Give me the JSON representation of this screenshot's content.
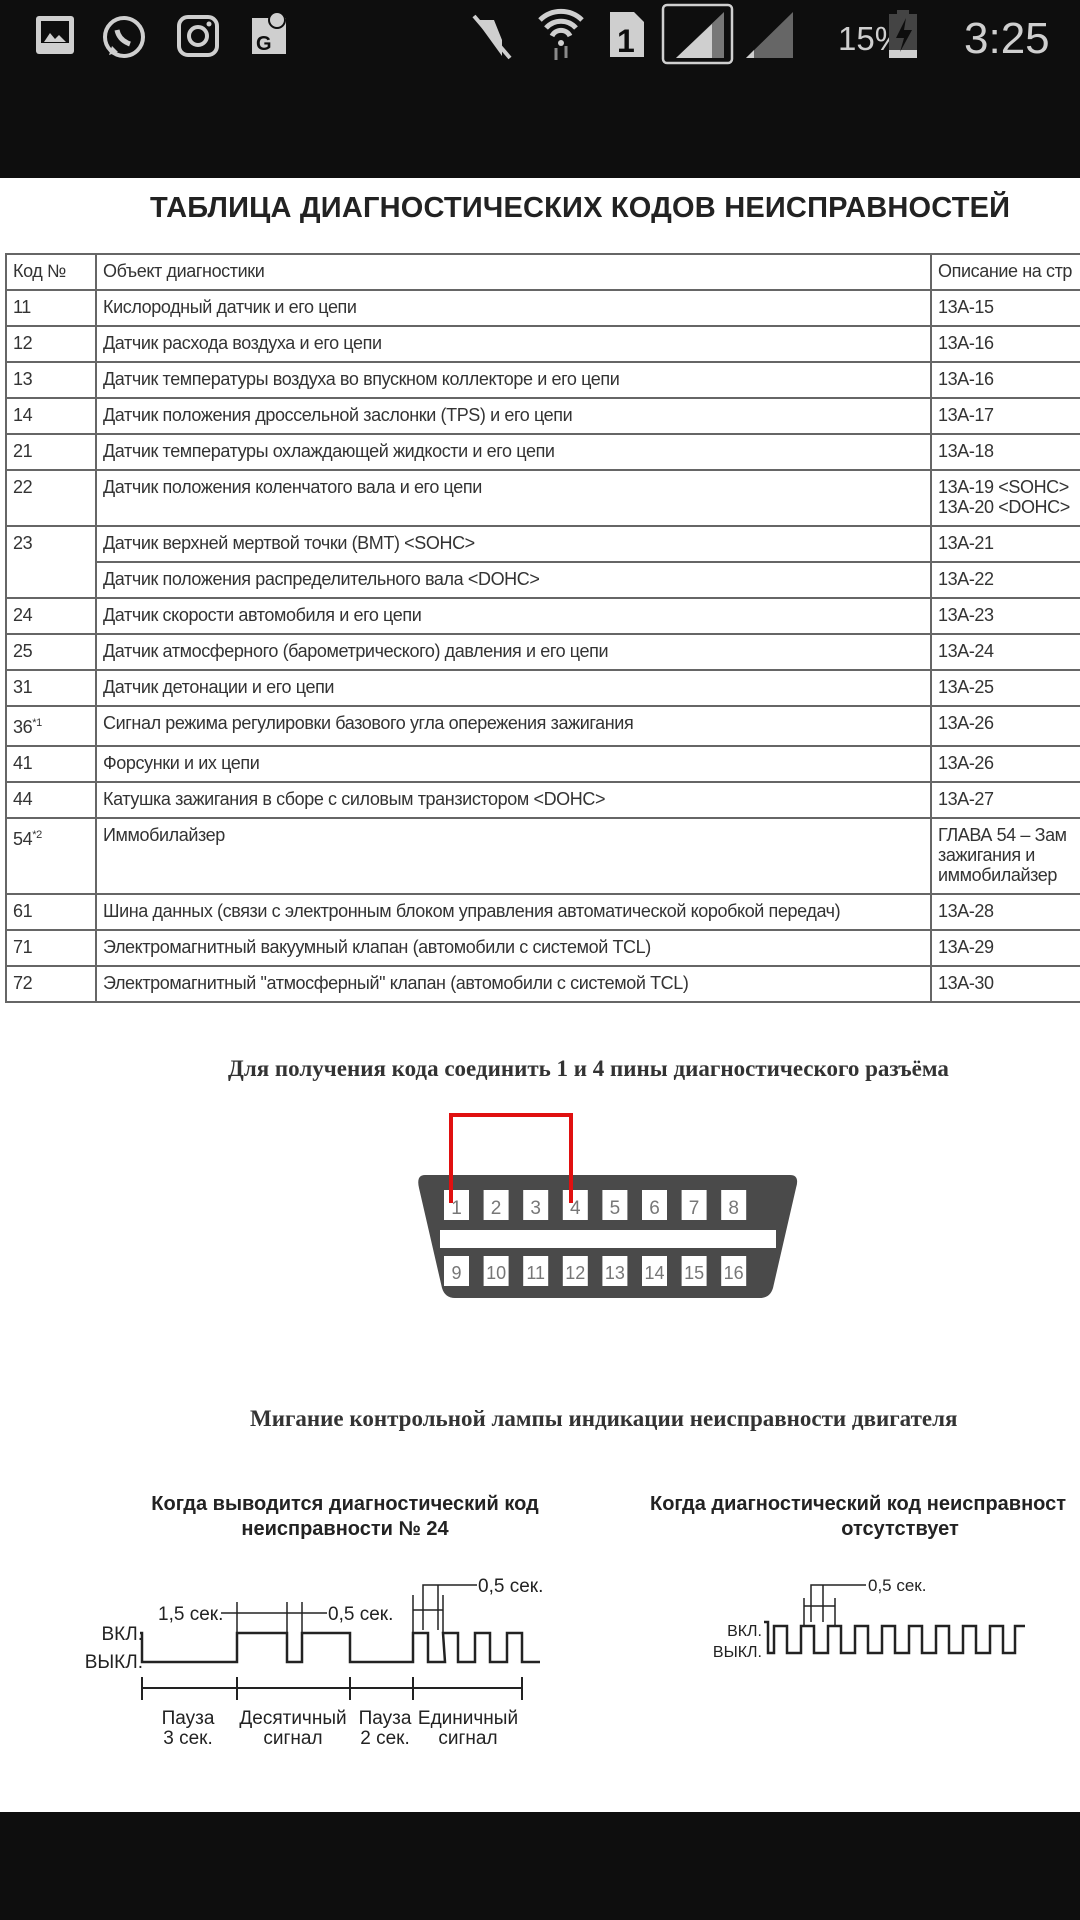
{
  "status_bar": {
    "left_icons": [
      "gallery-icon",
      "whatsapp-icon",
      "instagram-icon",
      "google-maps-icon"
    ],
    "right_icons": [
      "mute-icon",
      "wifi-icon",
      "sim1-icon",
      "signal-icon",
      "signal-2-icon",
      "battery-charging-icon"
    ],
    "battery_percent": "15%",
    "time": "3:25"
  },
  "document": {
    "title": "ТАБЛИЦА ДИАГНОСТИЧЕСКИХ КОДОВ НЕИСПРАВНОСТЕЙ",
    "table": {
      "headers": [
        "Код №",
        "Объект диагностики",
        "Описание на стр"
      ],
      "rows": [
        {
          "code": "11",
          "sup": "",
          "items": [
            {
              "object": "Кислородный датчик и его цепи",
              "page": [
                "13A-15"
              ]
            }
          ]
        },
        {
          "code": "12",
          "sup": "",
          "items": [
            {
              "object": "Датчик расхода воздуха и его цепи",
              "page": [
                "13A-16"
              ]
            }
          ]
        },
        {
          "code": "13",
          "sup": "",
          "items": [
            {
              "object": "Датчик температуры воздуха во впускном коллекторе и его цепи",
              "page": [
                "13A-16"
              ]
            }
          ]
        },
        {
          "code": "14",
          "sup": "",
          "items": [
            {
              "object": "Датчик положения дроссельной заслонки (TPS) и его цепи",
              "page": [
                "13A-17"
              ]
            }
          ]
        },
        {
          "code": "21",
          "sup": "",
          "items": [
            {
              "object": "Датчик температуры охлаждающей жидкости и его цепи",
              "page": [
                "13A-18"
              ]
            }
          ]
        },
        {
          "code": "22",
          "sup": "",
          "items": [
            {
              "object": "Датчик положения коленчатого вала и его цепи",
              "page": [
                "13A-19 <SOHC>",
                "13A-20 <DOHC>"
              ]
            }
          ]
        },
        {
          "code": "23",
          "sup": "",
          "items": [
            {
              "object": "Датчик верхней мертвой точки (ВМТ) <SOHC>",
              "page": [
                "13A-21"
              ]
            },
            {
              "object": "Датчик положения распределительного вала <DOHC>",
              "page": [
                "13A-22"
              ]
            }
          ]
        },
        {
          "code": "24",
          "sup": "",
          "items": [
            {
              "object": "Датчик скорости автомобиля и его цепи",
              "page": [
                "13A-23"
              ]
            }
          ]
        },
        {
          "code": "25",
          "sup": "",
          "items": [
            {
              "object": "Датчик атмосферного (барометрического) давления и его цепи",
              "page": [
                "13A-24"
              ]
            }
          ]
        },
        {
          "code": "31",
          "sup": "",
          "items": [
            {
              "object": "Датчик детонации и его цепи",
              "page": [
                "13A-25"
              ]
            }
          ]
        },
        {
          "code": "36",
          "sup": "*1",
          "items": [
            {
              "object": "Сигнал режима регулировки базового угла опережения зажигания",
              "page": [
                "13A-26"
              ]
            }
          ]
        },
        {
          "code": "41",
          "sup": "",
          "items": [
            {
              "object": "Форсунки и их цепи",
              "page": [
                "13A-26"
              ]
            }
          ]
        },
        {
          "code": "44",
          "sup": "",
          "items": [
            {
              "object": "Катушка зажигания в сборе с силовым транзистором <DOHC>",
              "page": [
                "13A-27"
              ]
            }
          ]
        },
        {
          "code": "54",
          "sup": "*2",
          "items": [
            {
              "object": "Иммобилайзер",
              "page": [
                "ГЛАВА 54 – Зам",
                "зажигания и",
                "иммобилайзер"
              ]
            }
          ]
        },
        {
          "code": "61",
          "sup": "",
          "items": [
            {
              "object": "Шина данных (связи с электронным блоком управления автоматической коробкой передач)",
              "page": [
                "13A-28"
              ]
            }
          ]
        },
        {
          "code": "71",
          "sup": "",
          "items": [
            {
              "object": "Электромагнитный вакуумный клапан (автомобили с системой TCL)",
              "page": [
                "13A-29"
              ]
            }
          ]
        },
        {
          "code": "72",
          "sup": "",
          "items": [
            {
              "object": "Электромагнитный \"атмосферный\" клапан (автомобили с системой TCL)",
              "page": [
                "13A-30"
              ]
            }
          ]
        }
      ]
    },
    "connector": {
      "caption": "Для получения кода соединить 1 и 4 пины диагностического разъёма",
      "pins_top": [
        "1",
        "2",
        "3",
        "4",
        "5",
        "6",
        "7",
        "8"
      ],
      "pins_bottom": [
        "9",
        "10",
        "11",
        "12",
        "13",
        "14",
        "15",
        "16"
      ],
      "jumper_color": "#e01010"
    },
    "blink": {
      "caption": "Мигание контрольной лампы индикации неисправности двигателя",
      "left": {
        "title_line1": "Когда выводится диагностический код",
        "title_line2": "неисправности № 24",
        "on_label": "ВКЛ.",
        "off_label": "ВЫКЛ.",
        "t_long": "1,5 сек.",
        "t_short": "0,5 сек.",
        "t_short_top": "0,5 сек.",
        "seg1": [
          "Пауза",
          "3 сек."
        ],
        "seg2": [
          "Десятичный",
          "сигнал"
        ],
        "seg3": [
          "Пауза",
          "2 сек."
        ],
        "seg4": [
          "Единичный",
          "сигнал"
        ]
      },
      "right": {
        "title_line1": "Когда диагностический код неисправност",
        "title_line2": "отсутствует",
        "on_label": "ВКЛ.",
        "off_label": "ВЫКЛ.",
        "t_short": "0,5 сек."
      }
    }
  }
}
